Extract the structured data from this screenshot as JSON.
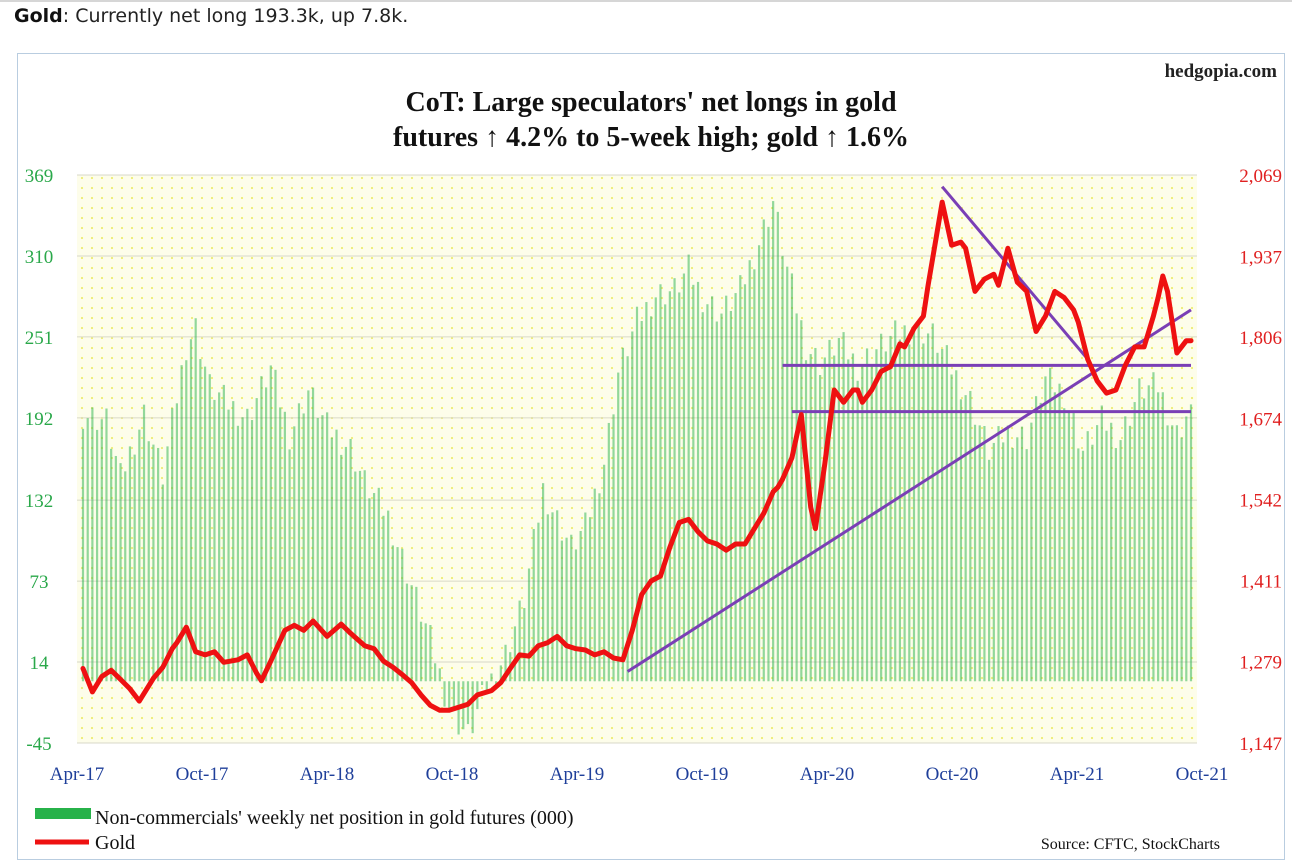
{
  "caption": {
    "bold": "Gold",
    "text": ": Currently net long 193.3k, up 7.8k."
  },
  "colors": {
    "bars": "#27b24a",
    "gold_line": "#ee1111",
    "trendline": "#7a3fb5",
    "left_axis_text": "#2aa84a",
    "right_axis_text": "#e02020",
    "x_axis_text": "#1f3f9a",
    "plot_background": "#fdfdea",
    "plot_dots": "#eeee70"
  },
  "chart_data": {
    "type": "bar+line",
    "watermark": "hedgopia.com",
    "title_line1": "CoT: Large speculators' net longs in gold",
    "title_line2": "futures ↑ 4.2% to 5-week high; gold ↑ 1.6%",
    "source": "Source: CFTC, StockCharts",
    "left_axis": {
      "ticks": [
        369,
        310,
        251,
        192,
        132,
        73,
        14,
        -45
      ],
      "labels": [
        "369",
        "310",
        "251",
        "192",
        "132",
        "73",
        "14",
        "-45"
      ],
      "range": [
        -45,
        369
      ]
    },
    "right_axis": {
      "ticks": [
        2069,
        1937,
        1806,
        1674,
        1542,
        1411,
        1279,
        1147
      ],
      "labels": [
        "2,069",
        "1,937",
        "1,806",
        "1,674",
        "1,542",
        "1,411",
        "1,279",
        "1,147"
      ],
      "range": [
        1147,
        2069
      ]
    },
    "x_axis": {
      "labels": [
        "Apr-17",
        "Oct-17",
        "Apr-18",
        "Oct-18",
        "Apr-19",
        "Oct-19",
        "Apr-20",
        "Oct-20",
        "Apr-21",
        "Oct-21"
      ],
      "weeks_total": 236
    },
    "grid": true,
    "legend": {
      "placement": "bottom-left",
      "items": [
        {
          "label": "Non-commercials' weekly net position in gold futures (000)",
          "kind": "bar"
        },
        {
          "label": "Gold",
          "kind": "line"
        }
      ]
    },
    "series": [
      {
        "name": "Non-commercials' weekly net position in gold futures (000)",
        "kind": "bar",
        "anchors": [
          [
            0,
            195
          ],
          [
            5,
            190
          ],
          [
            8,
            148
          ],
          [
            13,
            195
          ],
          [
            17,
            150
          ],
          [
            22,
            245
          ],
          [
            24,
            258
          ],
          [
            27,
            215
          ],
          [
            30,
            205
          ],
          [
            35,
            192
          ],
          [
            40,
            228
          ],
          [
            44,
            180
          ],
          [
            48,
            212
          ],
          [
            52,
            185
          ],
          [
            57,
            170
          ],
          [
            60,
            145
          ],
          [
            65,
            120
          ],
          [
            70,
            70
          ],
          [
            74,
            30
          ],
          [
            78,
            -20
          ],
          [
            82,
            -40
          ],
          [
            86,
            -5
          ],
          [
            90,
            20
          ],
          [
            94,
            60
          ],
          [
            98,
            140
          ],
          [
            101,
            118
          ],
          [
            104,
            98
          ],
          [
            107,
            112
          ],
          [
            111,
            160
          ],
          [
            114,
            225
          ],
          [
            118,
            262
          ],
          [
            122,
            282
          ],
          [
            126,
            285
          ],
          [
            129,
            300
          ],
          [
            132,
            280
          ],
          [
            136,
            268
          ],
          [
            140,
            285
          ],
          [
            144,
            320
          ],
          [
            147,
            350
          ],
          [
            150,
            300
          ],
          [
            154,
            245
          ],
          [
            157,
            232
          ],
          [
            161,
            248
          ],
          [
            165,
            230
          ],
          [
            169,
            242
          ],
          [
            173,
            252
          ],
          [
            177,
            258
          ],
          [
            181,
            252
          ],
          [
            185,
            228
          ],
          [
            189,
            205
          ],
          [
            193,
            168
          ],
          [
            197,
            182
          ],
          [
            201,
            178
          ],
          [
            205,
            220
          ],
          [
            209,
            210
          ],
          [
            213,
            168
          ],
          [
            217,
            190
          ],
          [
            221,
            178
          ],
          [
            225,
            212
          ],
          [
            229,
            215
          ],
          [
            233,
            180
          ],
          [
            235,
            193
          ]
        ]
      },
      {
        "name": "Gold",
        "kind": "line",
        "anchors": [
          [
            0,
            1268
          ],
          [
            2,
            1230
          ],
          [
            4,
            1255
          ],
          [
            6,
            1265
          ],
          [
            8,
            1250
          ],
          [
            10,
            1235
          ],
          [
            12,
            1215
          ],
          [
            15,
            1252
          ],
          [
            17,
            1270
          ],
          [
            19,
            1300
          ],
          [
            20,
            1310
          ],
          [
            22,
            1335
          ],
          [
            24,
            1295
          ],
          [
            26,
            1290
          ],
          [
            28,
            1295
          ],
          [
            30,
            1278
          ],
          [
            33,
            1282
          ],
          [
            35,
            1290
          ],
          [
            37,
            1260
          ],
          [
            38,
            1248
          ],
          [
            40,
            1280
          ],
          [
            43,
            1330
          ],
          [
            45,
            1338
          ],
          [
            47,
            1330
          ],
          [
            49,
            1345
          ],
          [
            52,
            1320
          ],
          [
            55,
            1340
          ],
          [
            57,
            1325
          ],
          [
            60,
            1305
          ],
          [
            62,
            1300
          ],
          [
            64,
            1280
          ],
          [
            66,
            1270
          ],
          [
            68,
            1258
          ],
          [
            70,
            1245
          ],
          [
            72,
            1225
          ],
          [
            74,
            1208
          ],
          [
            76,
            1200
          ],
          [
            78,
            1200
          ],
          [
            80,
            1205
          ],
          [
            82,
            1210
          ],
          [
            84,
            1225
          ],
          [
            87,
            1232
          ],
          [
            89,
            1245
          ],
          [
            91,
            1268
          ],
          [
            93,
            1290
          ],
          [
            95,
            1288
          ],
          [
            97,
            1305
          ],
          [
            99,
            1310
          ],
          [
            101,
            1320
          ],
          [
            103,
            1305
          ],
          [
            105,
            1300
          ],
          [
            107,
            1298
          ],
          [
            109,
            1290
          ],
          [
            111,
            1295
          ],
          [
            113,
            1285
          ],
          [
            115,
            1282
          ],
          [
            117,
            1330
          ],
          [
            119,
            1388
          ],
          [
            121,
            1410
          ],
          [
            123,
            1418
          ],
          [
            125,
            1465
          ],
          [
            127,
            1505
          ],
          [
            129,
            1510
          ],
          [
            131,
            1490
          ],
          [
            133,
            1475
          ],
          [
            135,
            1470
          ],
          [
            137,
            1460
          ],
          [
            139,
            1470
          ],
          [
            141,
            1470
          ],
          [
            143,
            1495
          ],
          [
            145,
            1520
          ],
          [
            147,
            1555
          ],
          [
            148,
            1562
          ],
          [
            149,
            1575
          ],
          [
            151,
            1610
          ],
          [
            153,
            1680
          ],
          [
            155,
            1530
          ],
          [
            156,
            1495
          ],
          [
            158,
            1600
          ],
          [
            160,
            1720
          ],
          [
            162,
            1700
          ],
          [
            164,
            1720
          ],
          [
            165,
            1720
          ],
          [
            166,
            1700
          ],
          [
            168,
            1720
          ],
          [
            170,
            1750
          ],
          [
            172,
            1758
          ],
          [
            174,
            1795
          ],
          [
            175,
            1790
          ],
          [
            177,
            1820
          ],
          [
            179,
            1840
          ],
          [
            180,
            1890
          ],
          [
            182,
            1980
          ],
          [
            183,
            2025
          ],
          [
            185,
            1955
          ],
          [
            187,
            1960
          ],
          [
            188,
            1950
          ],
          [
            190,
            1880
          ],
          [
            192,
            1900
          ],
          [
            194,
            1908
          ],
          [
            195,
            1890
          ],
          [
            197,
            1950
          ],
          [
            199,
            1895
          ],
          [
            201,
            1880
          ],
          [
            203,
            1815
          ],
          [
            205,
            1840
          ],
          [
            207,
            1880
          ],
          [
            209,
            1870
          ],
          [
            211,
            1850
          ],
          [
            212,
            1830
          ],
          [
            214,
            1770
          ],
          [
            216,
            1735
          ],
          [
            218,
            1715
          ],
          [
            220,
            1720
          ],
          [
            222,
            1760
          ],
          [
            224,
            1790
          ],
          [
            226,
            1790
          ],
          [
            228,
            1840
          ],
          [
            229,
            1870
          ],
          [
            230,
            1905
          ],
          [
            231,
            1880
          ],
          [
            233,
            1780
          ],
          [
            235,
            1800
          ],
          [
            236,
            1800
          ]
        ]
      }
    ],
    "trendlines": [
      {
        "from": [
          116,
          1263
        ],
        "to": [
          236,
          1850
        ]
      },
      {
        "from": [
          183,
          2050
        ],
        "to": [
          214,
          1770
        ]
      },
      {
        "from": [
          149,
          1760
        ],
        "to": [
          236,
          1760
        ]
      },
      {
        "from": [
          151,
          1685
        ],
        "to": [
          236,
          1685
        ]
      }
    ]
  }
}
